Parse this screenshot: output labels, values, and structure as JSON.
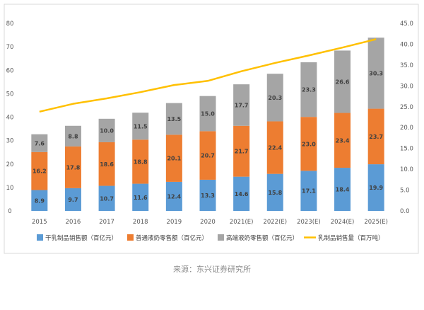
{
  "chart_data": {
    "type": "bar",
    "stacked": true,
    "categories": [
      "2015",
      "2016",
      "2017",
      "2018",
      "2019",
      "2020",
      "2021(E)",
      "2022(E)",
      "2023(E)",
      "2024(E)",
      "2025(E)"
    ],
    "series": [
      {
        "name": "干乳制品销售额（百亿元）",
        "kind": "bar",
        "axis": "left",
        "color": "#5b9bd5",
        "values": [
          8.9,
          9.7,
          10.7,
          11.6,
          12.4,
          13.3,
          14.6,
          15.8,
          17.1,
          18.4,
          19.9
        ]
      },
      {
        "name": "普通液奶零售额（百亿元）",
        "kind": "bar",
        "axis": "left",
        "color": "#ed7d31",
        "values": [
          16.2,
          17.8,
          18.6,
          18.8,
          20.1,
          20.7,
          21.7,
          22.4,
          23.0,
          23.4,
          23.7
        ]
      },
      {
        "name": "高端液奶零售额（百亿元）",
        "kind": "bar",
        "axis": "left",
        "color": "#a5a5a5",
        "values": [
          7.6,
          8.8,
          10.0,
          11.5,
          13.5,
          15.0,
          17.7,
          20.3,
          23.3,
          26.6,
          30.3
        ]
      },
      {
        "name": "乳制品销售量（百万吨）",
        "kind": "line",
        "axis": "right",
        "color": "#ffc000",
        "values": [
          23.8,
          25.7,
          27.0,
          28.5,
          30.2,
          31.2,
          33.5,
          35.5,
          37.3,
          39.2,
          41.2
        ]
      }
    ],
    "left_axis": {
      "min": 0,
      "max": 80,
      "step": 10,
      "ticks": [
        "0",
        "10",
        "20",
        "30",
        "40",
        "50",
        "60",
        "70",
        "80"
      ]
    },
    "right_axis": {
      "min": 0,
      "max": 45,
      "step": 5,
      "ticks": [
        "0.0",
        "5.0",
        "10.0",
        "15.0",
        "20.0",
        "25.0",
        "30.0",
        "35.0",
        "40.0",
        "45.0"
      ]
    },
    "grid": false,
    "legend_position": "bottom",
    "title": "",
    "xlabel": "",
    "ylabel": ""
  },
  "source_note": "来源：东兴证券研究所"
}
